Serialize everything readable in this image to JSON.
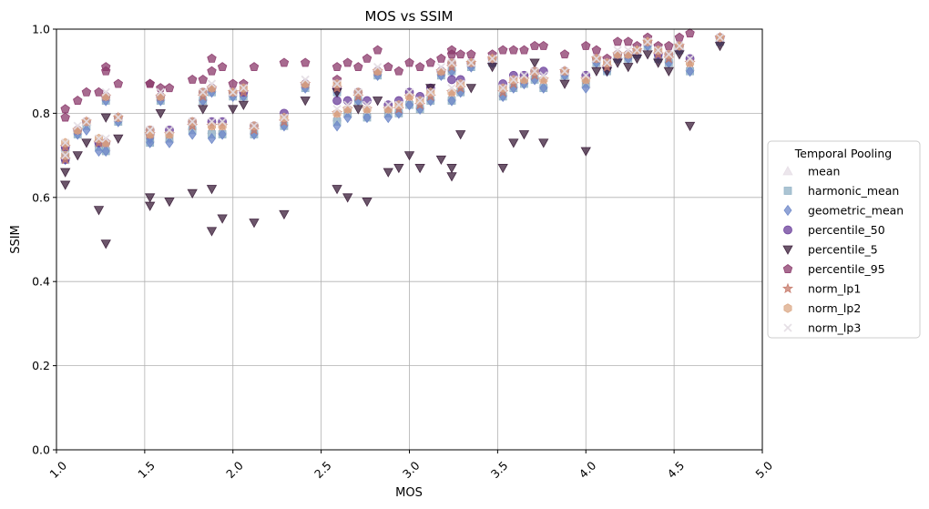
{
  "chart_data": {
    "type": "scatter",
    "title": "MOS vs SSIM",
    "xlabel": "MOS",
    "ylabel": "SSIM",
    "xlim": [
      1.0,
      5.0
    ],
    "ylim": [
      0.0,
      1.0
    ],
    "xticks": [
      "1.0",
      "1.5",
      "2.0",
      "2.5",
      "3.0",
      "3.5",
      "4.0",
      "4.5",
      "5.0"
    ],
    "yticks": [
      "0.0",
      "0.2",
      "0.4",
      "0.6",
      "0.8",
      "1.0"
    ],
    "grid": true,
    "legend": {
      "title": "Temporal Pooling",
      "placement": "outside-right"
    },
    "x": [
      1.05,
      1.05,
      1.12,
      1.17,
      1.24,
      1.28,
      1.28,
      1.35,
      1.53,
      1.53,
      1.59,
      1.64,
      1.77,
      1.83,
      1.88,
      1.88,
      1.94,
      2.0,
      2.06,
      2.12,
      2.29,
      2.41,
      2.59,
      2.59,
      2.65,
      2.71,
      2.76,
      2.82,
      2.88,
      2.94,
      3.0,
      3.06,
      3.12,
      3.18,
      3.24,
      3.24,
      3.29,
      3.35,
      3.47,
      3.53,
      3.59,
      3.65,
      3.71,
      3.76,
      3.88,
      4.0,
      4.06,
      4.12,
      4.18,
      4.24,
      4.29,
      4.35,
      4.41,
      4.47,
      4.53,
      4.59,
      4.76
    ],
    "series": [
      {
        "name": "mean",
        "color": "#e6dde6",
        "marker": "triangle",
        "values": [
          0.72,
          0.69,
          0.76,
          0.78,
          0.73,
          0.72,
          0.84,
          0.79,
          0.74,
          0.75,
          0.84,
          0.74,
          0.77,
          0.84,
          0.76,
          0.86,
          0.76,
          0.85,
          0.85,
          0.76,
          0.78,
          0.87,
          0.79,
          0.86,
          0.8,
          0.84,
          0.8,
          0.9,
          0.8,
          0.81,
          0.83,
          0.82,
          0.84,
          0.9,
          0.84,
          0.91,
          0.86,
          0.92,
          0.93,
          0.85,
          0.87,
          0.88,
          0.89,
          0.87,
          0.9,
          0.87,
          0.93,
          0.91,
          0.94,
          0.94,
          0.95,
          0.97,
          0.94,
          0.93,
          0.96,
          0.91,
          0.98
        ]
      },
      {
        "name": "harmonic_mean",
        "color": "#8fb0c4",
        "marker": "square",
        "values": [
          0.71,
          0.69,
          0.75,
          0.77,
          0.72,
          0.71,
          0.83,
          0.78,
          0.73,
          0.74,
          0.83,
          0.74,
          0.76,
          0.83,
          0.75,
          0.85,
          0.75,
          0.84,
          0.84,
          0.75,
          0.77,
          0.86,
          0.78,
          0.85,
          0.8,
          0.83,
          0.79,
          0.89,
          0.8,
          0.8,
          0.82,
          0.81,
          0.83,
          0.89,
          0.83,
          0.9,
          0.85,
          0.91,
          0.92,
          0.84,
          0.86,
          0.87,
          0.88,
          0.86,
          0.89,
          0.87,
          0.92,
          0.9,
          0.93,
          0.93,
          0.94,
          0.96,
          0.93,
          0.92,
          0.95,
          0.9,
          0.97
        ]
      },
      {
        "name": "geometric_mean",
        "color": "#6c86c8",
        "marker": "diamond",
        "values": [
          0.7,
          0.69,
          0.75,
          0.76,
          0.71,
          0.71,
          0.83,
          0.78,
          0.73,
          0.74,
          0.83,
          0.73,
          0.75,
          0.83,
          0.74,
          0.85,
          0.75,
          0.84,
          0.84,
          0.75,
          0.77,
          0.86,
          0.77,
          0.85,
          0.79,
          0.83,
          0.79,
          0.89,
          0.79,
          0.8,
          0.82,
          0.81,
          0.83,
          0.89,
          0.83,
          0.9,
          0.85,
          0.91,
          0.92,
          0.84,
          0.86,
          0.87,
          0.88,
          0.86,
          0.89,
          0.86,
          0.92,
          0.9,
          0.93,
          0.93,
          0.94,
          0.96,
          0.93,
          0.92,
          0.95,
          0.9,
          0.97
        ]
      },
      {
        "name": "percentile_50",
        "color": "#6a3d9a",
        "marker": "circle",
        "values": [
          0.72,
          0.69,
          0.76,
          0.78,
          0.73,
          0.73,
          0.84,
          0.79,
          0.76,
          0.75,
          0.84,
          0.76,
          0.78,
          0.85,
          0.78,
          0.86,
          0.78,
          0.85,
          0.85,
          0.77,
          0.8,
          0.87,
          0.83,
          0.86,
          0.83,
          0.85,
          0.83,
          0.9,
          0.82,
          0.83,
          0.85,
          0.84,
          0.86,
          0.9,
          0.88,
          0.92,
          0.88,
          0.92,
          0.93,
          0.87,
          0.89,
          0.89,
          0.9,
          0.9,
          0.9,
          0.89,
          0.93,
          0.91,
          0.94,
          0.94,
          0.95,
          0.97,
          0.94,
          0.94,
          0.96,
          0.93,
          0.98
        ]
      },
      {
        "name": "percentile_5",
        "color": "#3b1e3a",
        "marker": "triangle-down",
        "values": [
          0.66,
          0.63,
          0.7,
          0.73,
          0.57,
          0.49,
          0.79,
          0.74,
          0.6,
          0.58,
          0.8,
          0.59,
          0.61,
          0.81,
          0.52,
          0.62,
          0.55,
          0.81,
          0.82,
          0.54,
          0.56,
          0.83,
          0.62,
          0.85,
          0.6,
          0.81,
          0.59,
          0.83,
          0.66,
          0.67,
          0.7,
          0.67,
          0.86,
          0.69,
          0.65,
          0.67,
          0.75,
          0.86,
          0.91,
          0.67,
          0.73,
          0.75,
          0.92,
          0.73,
          0.87,
          0.71,
          0.9,
          0.9,
          0.92,
          0.91,
          0.93,
          0.94,
          0.92,
          0.9,
          0.94,
          0.77,
          0.96
        ]
      },
      {
        "name": "percentile_95",
        "color": "#8b3a6b",
        "marker": "pentagon",
        "values": [
          0.81,
          0.79,
          0.83,
          0.85,
          0.85,
          0.91,
          0.9,
          0.87,
          0.87,
          0.87,
          0.86,
          0.86,
          0.88,
          0.88,
          0.9,
          0.93,
          0.91,
          0.87,
          0.87,
          0.91,
          0.92,
          0.92,
          0.91,
          0.88,
          0.92,
          0.91,
          0.93,
          0.95,
          0.91,
          0.9,
          0.92,
          0.91,
          0.92,
          0.93,
          0.94,
          0.95,
          0.94,
          0.94,
          0.94,
          0.95,
          0.95,
          0.95,
          0.96,
          0.96,
          0.94,
          0.96,
          0.95,
          0.93,
          0.97,
          0.97,
          0.96,
          0.98,
          0.96,
          0.96,
          0.98,
          0.99,
          0.98
        ]
      },
      {
        "name": "norm_lp1",
        "color": "#c77a6a",
        "marker": "star",
        "values": [
          0.72,
          0.69,
          0.76,
          0.78,
          0.73,
          0.73,
          0.84,
          0.79,
          0.75,
          0.75,
          0.84,
          0.75,
          0.77,
          0.84,
          0.77,
          0.86,
          0.77,
          0.85,
          0.85,
          0.76,
          0.78,
          0.87,
          0.8,
          0.86,
          0.81,
          0.84,
          0.81,
          0.9,
          0.81,
          0.81,
          0.84,
          0.82,
          0.84,
          0.9,
          0.85,
          0.91,
          0.86,
          0.92,
          0.93,
          0.85,
          0.87,
          0.88,
          0.89,
          0.88,
          0.9,
          0.88,
          0.93,
          0.91,
          0.94,
          0.94,
          0.95,
          0.97,
          0.94,
          0.93,
          0.96,
          0.92,
          0.98
        ]
      },
      {
        "name": "norm_lp2",
        "color": "#dba886",
        "marker": "hexagon",
        "values": [
          0.73,
          0.7,
          0.76,
          0.78,
          0.74,
          0.73,
          0.84,
          0.79,
          0.75,
          0.76,
          0.84,
          0.75,
          0.78,
          0.85,
          0.77,
          0.86,
          0.77,
          0.85,
          0.86,
          0.77,
          0.79,
          0.87,
          0.8,
          0.87,
          0.81,
          0.85,
          0.81,
          0.9,
          0.81,
          0.82,
          0.84,
          0.83,
          0.85,
          0.9,
          0.85,
          0.92,
          0.87,
          0.92,
          0.93,
          0.86,
          0.88,
          0.88,
          0.9,
          0.88,
          0.9,
          0.88,
          0.93,
          0.92,
          0.94,
          0.94,
          0.95,
          0.97,
          0.95,
          0.94,
          0.96,
          0.92,
          0.98
        ]
      },
      {
        "name": "norm_lp3",
        "color": "#e3dde3",
        "marker": "x",
        "values": [
          0.73,
          0.7,
          0.77,
          0.78,
          0.74,
          0.74,
          0.85,
          0.79,
          0.76,
          0.76,
          0.85,
          0.76,
          0.78,
          0.85,
          0.78,
          0.87,
          0.78,
          0.85,
          0.86,
          0.77,
          0.79,
          0.88,
          0.81,
          0.87,
          0.82,
          0.85,
          0.82,
          0.91,
          0.82,
          0.82,
          0.85,
          0.83,
          0.85,
          0.91,
          0.86,
          0.92,
          0.87,
          0.92,
          0.93,
          0.86,
          0.88,
          0.89,
          0.9,
          0.89,
          0.9,
          0.89,
          0.93,
          0.92,
          0.95,
          0.95,
          0.95,
          0.97,
          0.95,
          0.94,
          0.96,
          0.93,
          0.98
        ]
      }
    ]
  }
}
